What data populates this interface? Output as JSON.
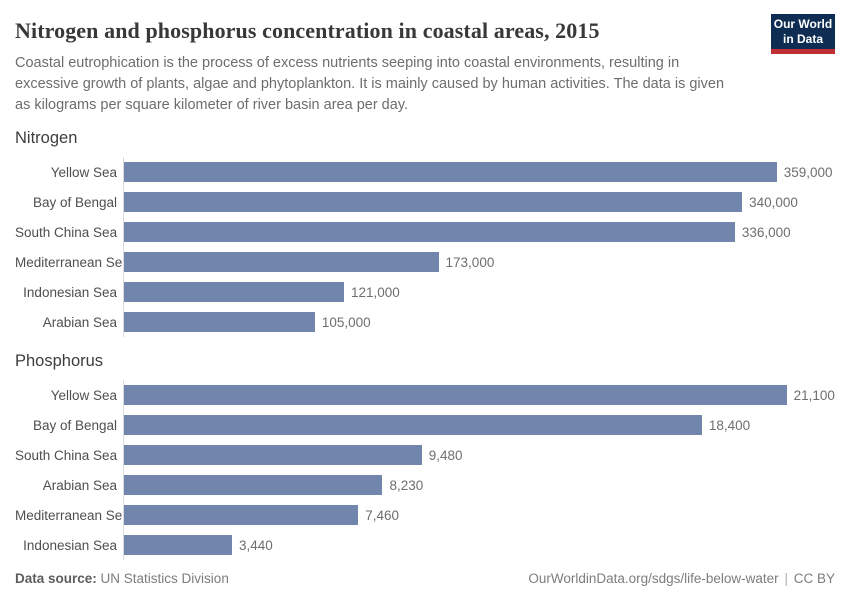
{
  "header": {
    "title": "Nitrogen and phosphorus concentration in coastal areas, 2015",
    "subtitle": "Coastal eutrophication is the process of excess nutrients seeping into coastal environments, resulting in excessive growth of plants, algae and phytoplankton. It is mainly caused by human activities. The data is given as kilograms per square kilometer of river basin area per day.",
    "logo": {
      "line1": "Our World",
      "line2": "in Data"
    }
  },
  "chart_data": [
    {
      "type": "bar",
      "orientation": "horizontal",
      "title": "Nitrogen",
      "unit": "kilograms per square kilometer of river basin area per day",
      "categories": [
        "Yellow Sea",
        "Bay of Bengal",
        "South China Sea",
        "Mediterranean Sea",
        "Indonesian Sea",
        "Arabian Sea"
      ],
      "values": [
        359000,
        340000,
        336000,
        173000,
        121000,
        105000
      ],
      "value_labels": [
        "359,000",
        "340,000",
        "336,000",
        "173,000",
        "121,000",
        "105,000"
      ],
      "xlim": [
        0,
        359000
      ],
      "grid": false,
      "legend": "none"
    },
    {
      "type": "bar",
      "orientation": "horizontal",
      "title": "Phosphorus",
      "unit": "kilograms per square kilometer of river basin area per day",
      "categories": [
        "Yellow Sea",
        "Bay of Bengal",
        "South China Sea",
        "Arabian Sea",
        "Mediterranean Sea",
        "Indonesian Sea"
      ],
      "values": [
        21100,
        18400,
        9480,
        8230,
        7460,
        3440
      ],
      "value_labels": [
        "21,100",
        "18,400",
        "9,480",
        "8,230",
        "7,460",
        "3,440"
      ],
      "xlim": [
        0,
        21100
      ],
      "grid": false,
      "legend": "none"
    }
  ],
  "footer": {
    "datasource_label": "Data source:",
    "datasource_value": "UN Statistics Division",
    "url": "OurWorldinData.org/sdgs/life-below-water",
    "separator": "|",
    "license": "CC BY"
  },
  "colors": {
    "bar": "#7286ad",
    "logo_background": "#0f2d52",
    "logo_accent": "#bf3036",
    "axis_line": "#dcdcdc"
  }
}
